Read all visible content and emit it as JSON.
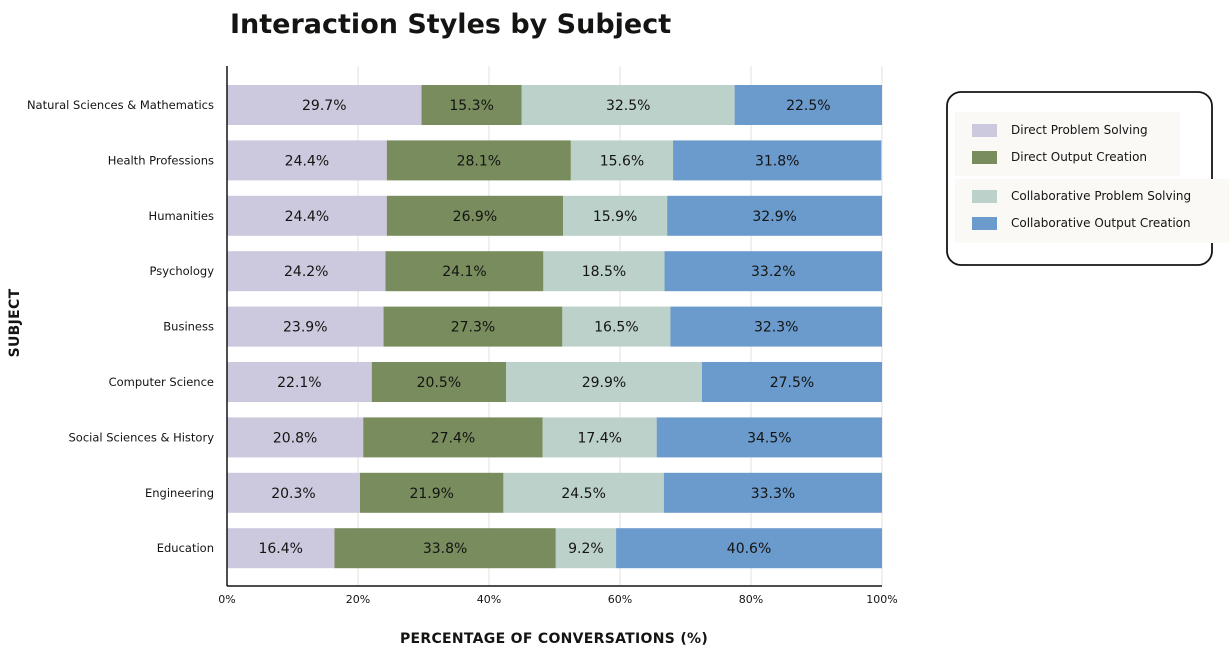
{
  "chart_data": {
    "type": "bar",
    "orientation": "horizontal",
    "stacked": true,
    "title": "Interaction Styles by Subject",
    "xlabel": "PERCENTAGE OF CONVERSATIONS (%)",
    "ylabel": "SUBJECT",
    "xlim": [
      0,
      100
    ],
    "xticks": [
      "0%",
      "20%",
      "40%",
      "60%",
      "80%",
      "100%"
    ],
    "grid": "vertical",
    "legend_position": "right",
    "categories": [
      "Natural Sciences & Mathematics",
      "Health Professions",
      "Humanities",
      "Psychology",
      "Business",
      "Computer Science",
      "Social Sciences & History",
      "Engineering",
      "Education"
    ],
    "series": [
      {
        "name": "Direct Problem Solving",
        "color": "#ccc9de",
        "values": [
          29.7,
          24.4,
          24.4,
          24.2,
          23.9,
          22.1,
          20.8,
          20.3,
          16.4
        ],
        "labels": [
          "29.7%",
          "24.4%",
          "24.4%",
          "24.2%",
          "23.9%",
          "22.1%",
          "20.8%",
          "20.3%",
          "16.4%"
        ]
      },
      {
        "name": "Direct Output Creation",
        "color": "#788c5d",
        "values": [
          15.3,
          28.1,
          26.9,
          24.1,
          27.3,
          20.5,
          27.4,
          21.9,
          33.8
        ],
        "labels": [
          "15.3%",
          "28.1%",
          "26.9%",
          "24.1%",
          "27.3%",
          "20.5%",
          "27.4%",
          "21.9%",
          "33.8%"
        ]
      },
      {
        "name": "Collaborative Problem Solving",
        "color": "#bcd1ca",
        "values": [
          32.5,
          15.6,
          15.9,
          18.5,
          16.5,
          29.9,
          17.4,
          24.5,
          9.2
        ],
        "labels": [
          "32.5%",
          "15.6%",
          "15.9%",
          "18.5%",
          "16.5%",
          "29.9%",
          "17.4%",
          "24.5%",
          "9.2%"
        ]
      },
      {
        "name": "Collaborative Output Creation",
        "color": "#6a9bcc",
        "values": [
          22.5,
          31.8,
          32.9,
          33.2,
          32.3,
          27.5,
          34.5,
          33.3,
          40.6
        ],
        "labels": [
          "22.5%",
          "31.8%",
          "32.9%",
          "33.2%",
          "32.3%",
          "27.5%",
          "34.5%",
          "33.3%",
          "40.6%"
        ]
      }
    ]
  }
}
